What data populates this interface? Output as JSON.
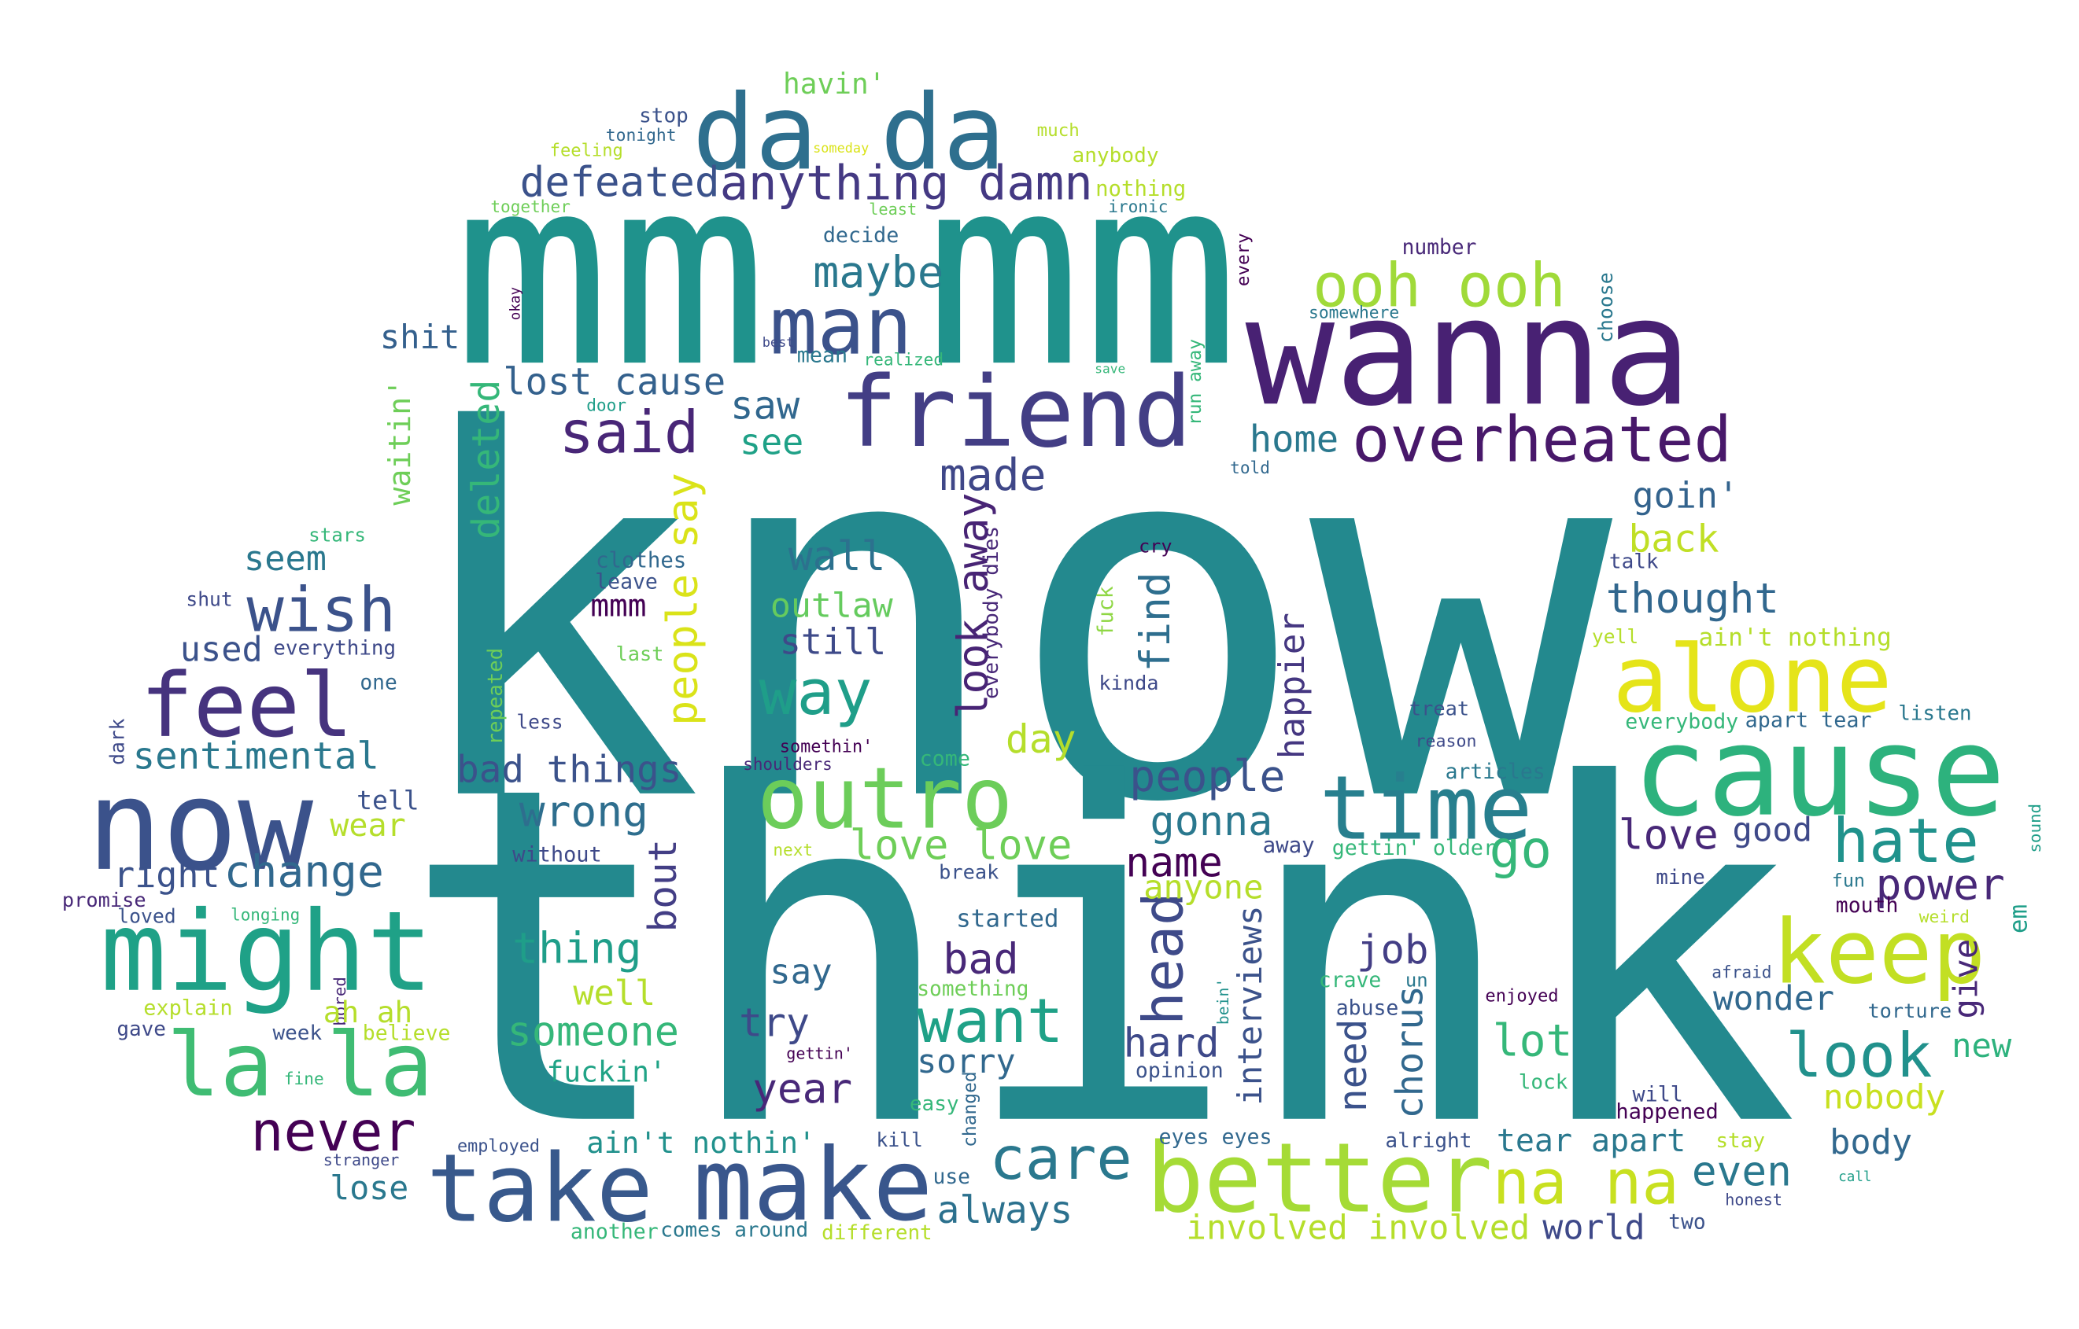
{
  "words": [
    {
      "text": "know",
      "color": "#23898e"
    },
    {
      "text": "think",
      "color": "#23898e"
    },
    {
      "text": "mm mm",
      "color": "#1f928c"
    },
    {
      "text": "wanna",
      "color": "#482173"
    },
    {
      "text": "da da",
      "color": "#2e6f8e"
    },
    {
      "text": "cause",
      "color": "#2db27d"
    },
    {
      "text": "friend",
      "color": "#433e85"
    },
    {
      "text": "now",
      "color": "#3b528b"
    },
    {
      "text": "might",
      "color": "#1fa187"
    },
    {
      "text": "feel",
      "color": "#46337e"
    },
    {
      "text": "la la",
      "color": "#3fbc73"
    },
    {
      "text": "take",
      "color": "#38598c"
    },
    {
      "text": "make",
      "color": "#39568c"
    },
    {
      "text": "better",
      "color": "#a5db36"
    },
    {
      "text": "na na",
      "color": "#c8e020"
    },
    {
      "text": "outro",
      "color": "#6ccd5a"
    },
    {
      "text": "time",
      "color": "#277f8e"
    },
    {
      "text": "alone",
      "color": "#e5e419"
    },
    {
      "text": "keep",
      "color": "#c2df23"
    },
    {
      "text": "hate",
      "color": "#20928c"
    },
    {
      "text": "look",
      "color": "#21918c"
    },
    {
      "text": "overheated",
      "color": "#48186a"
    },
    {
      "text": "ooh ooh",
      "color": "#a0da39"
    },
    {
      "text": "anything damn",
      "color": "#443983"
    },
    {
      "text": "defeated",
      "color": "#3b528b"
    },
    {
      "text": "man",
      "color": "#3b528b"
    },
    {
      "text": "maybe",
      "color": "#2a788e"
    },
    {
      "text": "said",
      "color": "#482677"
    },
    {
      "text": "lost cause",
      "color": "#34618d"
    },
    {
      "text": "saw",
      "color": "#31678e"
    },
    {
      "text": "see",
      "color": "#1fa187"
    },
    {
      "text": "wish",
      "color": "#3b528b"
    },
    {
      "text": "shit",
      "color": "#34608d"
    },
    {
      "text": "waitin'",
      "color": "#6ece58"
    },
    {
      "text": "deleted",
      "color": "#35b779"
    },
    {
      "text": "made",
      "color": "#3f4788"
    },
    {
      "text": "home",
      "color": "#2a788e"
    },
    {
      "text": "goin'",
      "color": "#33638d"
    },
    {
      "text": "back",
      "color": "#c0df25"
    },
    {
      "text": "thought",
      "color": "#31678e"
    },
    {
      "text": "wall",
      "color": "#2c718e"
    },
    {
      "text": "look away",
      "color": "#482475"
    },
    {
      "text": "people say",
      "color": "#dae319"
    },
    {
      "text": "outlaw",
      "color": "#65cb5e"
    },
    {
      "text": "still",
      "color": "#3e4a89"
    },
    {
      "text": "way",
      "color": "#1f9e89"
    },
    {
      "text": "mmm",
      "color": "#440154"
    },
    {
      "text": "clothes",
      "color": "#31688e"
    },
    {
      "text": "leave",
      "color": "#3b528b"
    },
    {
      "text": "last",
      "color": "#6ece58"
    },
    {
      "text": "everybody dies",
      "color": "#482878"
    },
    {
      "text": "find",
      "color": "#2e6e8e"
    },
    {
      "text": "cry",
      "color": "#440154"
    },
    {
      "text": "fuck",
      "color": "#8fd744"
    },
    {
      "text": "kinda",
      "color": "#3e4989"
    },
    {
      "text": "happier",
      "color": "#453781"
    },
    {
      "text": "interviews",
      "color": "#3b528b"
    },
    {
      "text": "head",
      "color": "#3e4a89"
    },
    {
      "text": "need",
      "color": "#3b528b"
    },
    {
      "text": "chorus",
      "color": "#31688e"
    },
    {
      "text": "bout",
      "color": "#433e85"
    },
    {
      "text": "repeated",
      "color": "#6ece58"
    },
    {
      "text": "dark",
      "color": "#3e4989"
    },
    {
      "text": "bored",
      "color": "#482878"
    },
    {
      "text": "changed",
      "color": "#31688e"
    },
    {
      "text": "bein'",
      "color": "#21918c"
    },
    {
      "text": "run away",
      "color": "#35b779"
    },
    {
      "text": "okay",
      "color": "#440154"
    },
    {
      "text": "every",
      "color": "#440154"
    },
    {
      "text": "choose",
      "color": "#2a788e"
    },
    {
      "text": "sound",
      "color": "#1f9e89"
    },
    {
      "text": "give",
      "color": "#482878"
    },
    {
      "text": "em",
      "color": "#1f9e89"
    },
    {
      "text": "sentimental",
      "color": "#2a788e"
    },
    {
      "text": "used",
      "color": "#3b528b"
    },
    {
      "text": "everything",
      "color": "#3e4989"
    },
    {
      "text": "one",
      "color": "#31688e"
    },
    {
      "text": "shut",
      "color": "#3e4989"
    },
    {
      "text": "stars",
      "color": "#35b779"
    },
    {
      "text": "seem",
      "color": "#2a788e"
    },
    {
      "text": "tell",
      "color": "#3b528b"
    },
    {
      "text": "right",
      "color": "#3b528b"
    },
    {
      "text": "change",
      "color": "#31688e"
    },
    {
      "text": "wear",
      "color": "#b5de2b"
    },
    {
      "text": "less",
      "color": "#3e4989"
    },
    {
      "text": "bad things",
      "color": "#3b528b"
    },
    {
      "text": "wrong",
      "color": "#2e6e8e"
    },
    {
      "text": "love love",
      "color": "#6ece58"
    },
    {
      "text": "people",
      "color": "#3b528b"
    },
    {
      "text": "gonna",
      "color": "#2a788e"
    },
    {
      "text": "name",
      "color": "#440154"
    },
    {
      "text": "anyone",
      "color": "#b5de2b"
    },
    {
      "text": "go",
      "color": "#35b779"
    },
    {
      "text": "love",
      "color": "#482878"
    },
    {
      "text": "good",
      "color": "#3e4989"
    },
    {
      "text": "power",
      "color": "#482878"
    },
    {
      "text": "day",
      "color": "#b5de2b"
    },
    {
      "text": "started",
      "color": "#31688e"
    },
    {
      "text": "job",
      "color": "#433e85"
    },
    {
      "text": "bad",
      "color": "#482878"
    },
    {
      "text": "want",
      "color": "#1fa187"
    },
    {
      "text": "say",
      "color": "#31688e"
    },
    {
      "text": "try",
      "color": "#3e4989"
    },
    {
      "text": "thing",
      "color": "#1f9e89"
    },
    {
      "text": "someone",
      "color": "#35b779"
    },
    {
      "text": "well",
      "color": "#b5de2b"
    },
    {
      "text": "fuckin'",
      "color": "#20a386"
    },
    {
      "text": "ah ah",
      "color": "#b5de2b"
    },
    {
      "text": "never",
      "color": "#440154"
    },
    {
      "text": "lose",
      "color": "#2a788e"
    },
    {
      "text": "ain't nothin'",
      "color": "#21918c"
    },
    {
      "text": "year",
      "color": "#482878"
    },
    {
      "text": "sorry",
      "color": "#31688e"
    },
    {
      "text": "always",
      "color": "#2c718e"
    },
    {
      "text": "care",
      "color": "#2a788e"
    },
    {
      "text": "hard",
      "color": "#3e4989"
    },
    {
      "text": "opinion",
      "color": "#3b528b"
    },
    {
      "text": "lot",
      "color": "#35b779"
    },
    {
      "text": "wonder",
      "color": "#31688e"
    },
    {
      "text": "new",
      "color": "#2db27d"
    },
    {
      "text": "nobody",
      "color": "#c8e020"
    },
    {
      "text": "body",
      "color": "#31688e"
    },
    {
      "text": "even",
      "color": "#2a788e"
    },
    {
      "text": "tear apart",
      "color": "#2a788e"
    },
    {
      "text": "world",
      "color": "#3e4989"
    },
    {
      "text": "involved involved",
      "color": "#b5de2b"
    },
    {
      "text": "alright",
      "color": "#3b528b"
    },
    {
      "text": "eyes eyes",
      "color": "#31688e"
    },
    {
      "text": "comes around",
      "color": "#2a788e"
    },
    {
      "text": "another",
      "color": "#35b779"
    },
    {
      "text": "different",
      "color": "#b5de2b"
    },
    {
      "text": "use",
      "color": "#31688e"
    },
    {
      "text": "kill",
      "color": "#3b528b"
    },
    {
      "text": "easy",
      "color": "#35b779"
    },
    {
      "text": "something",
      "color": "#6ece58"
    },
    {
      "text": "gettin'",
      "color": "#440154"
    },
    {
      "text": "break",
      "color": "#3b528b"
    },
    {
      "text": "come",
      "color": "#35b779"
    },
    {
      "text": "somethin'",
      "color": "#440154"
    },
    {
      "text": "shoulders",
      "color": "#482878"
    },
    {
      "text": "next",
      "color": "#b5de2b"
    },
    {
      "text": "away",
      "color": "#3e4989"
    },
    {
      "text": "gettin' older",
      "color": "#35b779"
    },
    {
      "text": "crave",
      "color": "#35b779"
    },
    {
      "text": "un",
      "color": "#2a788e"
    },
    {
      "text": "abuse",
      "color": "#3b528b"
    },
    {
      "text": "enjoyed",
      "color": "#440154"
    },
    {
      "text": "afraid",
      "color": "#3b528b"
    },
    {
      "text": "torture",
      "color": "#31688e"
    },
    {
      "text": "weird",
      "color": "#b5de2b"
    },
    {
      "text": "mouth",
      "color": "#440154"
    },
    {
      "text": "fun",
      "color": "#2a788e"
    },
    {
      "text": "mine",
      "color": "#3e4989"
    },
    {
      "text": "lock",
      "color": "#35b779"
    },
    {
      "text": "will",
      "color": "#3e4989"
    },
    {
      "text": "happened",
      "color": "#440154"
    },
    {
      "text": "stay",
      "color": "#b5de2b"
    },
    {
      "text": "honest",
      "color": "#3e4989"
    },
    {
      "text": "two",
      "color": "#3b528b"
    },
    {
      "text": "call",
      "color": "#1f9e89"
    },
    {
      "text": "articles",
      "color": "#2a788e"
    },
    {
      "text": "reason",
      "color": "#3e4989"
    },
    {
      "text": "treat",
      "color": "#3b528b"
    },
    {
      "text": "everybody",
      "color": "#35b779"
    },
    {
      "text": "apart tear",
      "color": "#31688e"
    },
    {
      "text": "listen",
      "color": "#2a788e"
    },
    {
      "text": "yell",
      "color": "#b5de2b"
    },
    {
      "text": "ain't nothing",
      "color": "#b5de2b"
    },
    {
      "text": "talk",
      "color": "#3e4989"
    },
    {
      "text": "number",
      "color": "#482878"
    },
    {
      "text": "somewhere",
      "color": "#2a788e"
    },
    {
      "text": "told",
      "color": "#31688e"
    },
    {
      "text": "save",
      "color": "#35b779"
    },
    {
      "text": "realized",
      "color": "#35b779"
    },
    {
      "text": "mean",
      "color": "#2a788e"
    },
    {
      "text": "best",
      "color": "#3e4989"
    },
    {
      "text": "door",
      "color": "#1f9e89"
    },
    {
      "text": "decide",
      "color": "#31688e"
    },
    {
      "text": "havin'",
      "color": "#6ece58"
    },
    {
      "text": "stop",
      "color": "#3b528b"
    },
    {
      "text": "tonight",
      "color": "#31688e"
    },
    {
      "text": "feeling",
      "color": "#b5de2b"
    },
    {
      "text": "someday",
      "color": "#dae319"
    },
    {
      "text": "much",
      "color": "#b5de2b"
    },
    {
      "text": "anybody",
      "color": "#b5de2b"
    },
    {
      "text": "nothing",
      "color": "#b5de2b"
    },
    {
      "text": "least",
      "color": "#6ece58"
    },
    {
      "text": "ironic",
      "color": "#2a788e"
    },
    {
      "text": "together",
      "color": "#6ece58"
    },
    {
      "text": "promise",
      "color": "#482878"
    },
    {
      "text": "loved",
      "color": "#3b528b"
    },
    {
      "text": "longing",
      "color": "#35b779"
    },
    {
      "text": "without",
      "color": "#3e4989"
    },
    {
      "text": "explain",
      "color": "#b5de2b"
    },
    {
      "text": "gave",
      "color": "#3e4989"
    },
    {
      "text": "week",
      "color": "#3b528b"
    },
    {
      "text": "believe",
      "color": "#b5de2b"
    },
    {
      "text": "fine",
      "color": "#35b779"
    },
    {
      "text": "employed",
      "color": "#3b528b"
    },
    {
      "text": "stranger",
      "color": "#3e4989"
    }
  ]
}
